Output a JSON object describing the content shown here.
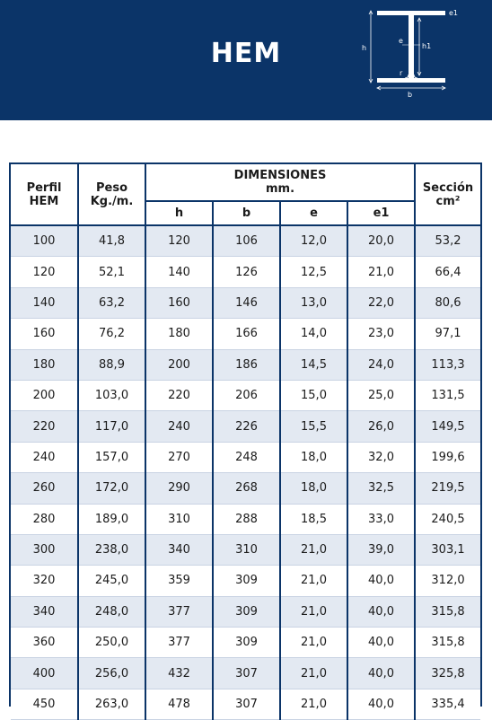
{
  "header": {
    "title": "HEM",
    "diagram_labels": {
      "e1": "e1",
      "h": "h",
      "h1": "h1",
      "e": "e",
      "r": "r",
      "b": "b"
    }
  },
  "table": {
    "col_perfil": [
      "Perfil",
      "HEM"
    ],
    "col_peso": [
      "Peso",
      "Kg./m."
    ],
    "group_dim": [
      "DIMENSIONES",
      "mm."
    ],
    "sub_cols": [
      "h",
      "b",
      "e",
      "e1"
    ],
    "col_seccion": [
      "Sección",
      "cm²"
    ],
    "rows": [
      [
        "100",
        "41,8",
        "120",
        "106",
        "12,0",
        "20,0",
        "53,2"
      ],
      [
        "120",
        "52,1",
        "140",
        "126",
        "12,5",
        "21,0",
        "66,4"
      ],
      [
        "140",
        "63,2",
        "160",
        "146",
        "13,0",
        "22,0",
        "80,6"
      ],
      [
        "160",
        "76,2",
        "180",
        "166",
        "14,0",
        "23,0",
        "97,1"
      ],
      [
        "180",
        "88,9",
        "200",
        "186",
        "14,5",
        "24,0",
        "113,3"
      ],
      [
        "200",
        "103,0",
        "220",
        "206",
        "15,0",
        "25,0",
        "131,5"
      ],
      [
        "220",
        "117,0",
        "240",
        "226",
        "15,5",
        "26,0",
        "149,5"
      ],
      [
        "240",
        "157,0",
        "270",
        "248",
        "18,0",
        "32,0",
        "199,6"
      ],
      [
        "260",
        "172,0",
        "290",
        "268",
        "18,0",
        "32,5",
        "219,5"
      ],
      [
        "280",
        "189,0",
        "310",
        "288",
        "18,5",
        "33,0",
        "240,5"
      ],
      [
        "300",
        "238,0",
        "340",
        "310",
        "21,0",
        "39,0",
        "303,1"
      ],
      [
        "320",
        "245,0",
        "359",
        "309",
        "21,0",
        "40,0",
        "312,0"
      ],
      [
        "340",
        "248,0",
        "377",
        "309",
        "21,0",
        "40,0",
        "315,8"
      ],
      [
        "360",
        "250,0",
        "377",
        "309",
        "21,0",
        "40,0",
        "315,8"
      ],
      [
        "400",
        "256,0",
        "432",
        "307",
        "21,0",
        "40,0",
        "325,8"
      ],
      [
        "450",
        "263,0",
        "478",
        "307",
        "21,0",
        "40,0",
        "335,4"
      ]
    ]
  },
  "colors": {
    "brand_blue": "#0b3468",
    "row_shade": "#e3e9f2",
    "text": "#1b1b1b"
  }
}
